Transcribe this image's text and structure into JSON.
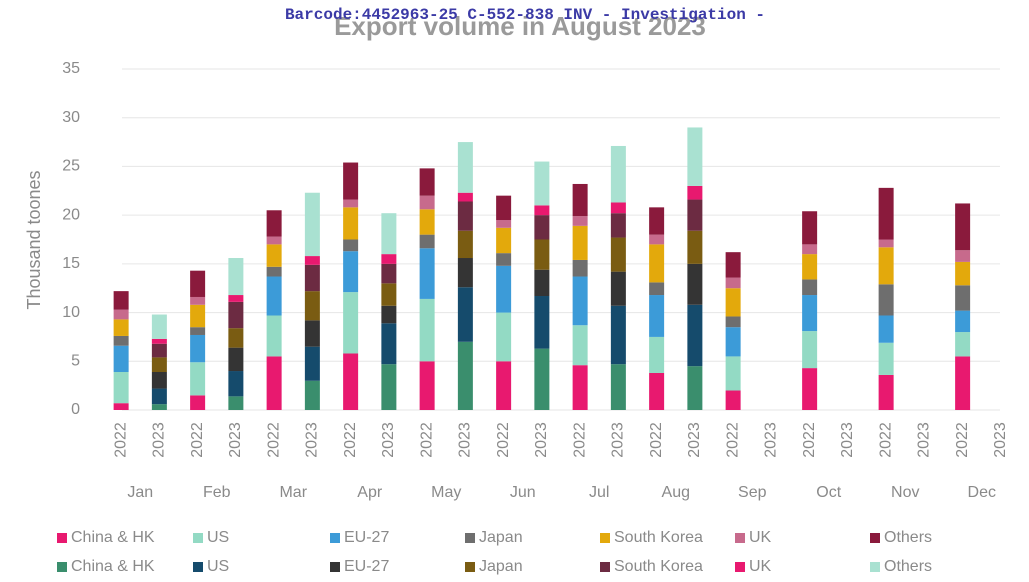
{
  "chart_data": {
    "type": "bar",
    "stacked": true,
    "overlay_text": "Barcode:4452963-25 C-552-838 INV - Investigation  -",
    "title": "Export volume in August 2023",
    "y_label": "Thousand toones",
    "categories": [
      "Jan",
      "Feb",
      "Mar",
      "Apr",
      "May",
      "Jun",
      "Jul",
      "Aug",
      "Sep",
      "Oct",
      "Nov",
      "Dec"
    ],
    "ylim": [
      0,
      35
    ],
    "yticks": [
      0,
      5,
      10,
      15,
      20,
      25,
      30,
      35
    ],
    "grid": true,
    "groups": [
      {
        "year": "2022",
        "series": [
          {
            "name": "China & HK",
            "color": "#e8196f",
            "values": [
              0.7,
              1.5,
              5.5,
              5.8,
              5,
              5,
              4.6,
              3.8,
              2,
              4.3,
              3.6,
              5.5
            ]
          },
          {
            "name": "US",
            "color": "#93dac4",
            "values": [
              3.2,
              3.4,
              4.2,
              6.3,
              6.4,
              5,
              4.1,
              3.7,
              3.5,
              3.8,
              3.3,
              2.5
            ]
          },
          {
            "name": "EU-27",
            "color": "#3c9bd8",
            "values": [
              2.7,
              2.8,
              4,
              4.2,
              5.2,
              4.8,
              5,
              4.3,
              3,
              3.7,
              2.8,
              2.2
            ]
          },
          {
            "name": "Japan",
            "color": "#6e6e6e",
            "values": [
              1,
              0.8,
              1,
              1.2,
              1.4,
              1.3,
              1.7,
              1.3,
              1.1,
              1.6,
              3.2,
              2.6
            ]
          },
          {
            "name": "South Korea",
            "color": "#e3a90c",
            "values": [
              1.7,
              2.3,
              2.3,
              3.3,
              2.6,
              2.6,
              3.5,
              3.9,
              2.9,
              2.6,
              3.8,
              2.4
            ]
          },
          {
            "name": "UK",
            "color": "#c76a8c",
            "values": [
              1,
              0.8,
              0.8,
              0.8,
              1.4,
              0.8,
              1,
              1,
              1.1,
              1,
              0.8,
              1.2
            ]
          },
          {
            "name": "Others",
            "color": "#8a1a3c",
            "values": [
              1.9,
              2.7,
              2.7,
              3.8,
              2.8,
              2.5,
              3.3,
              2.8,
              2.6,
              3.4,
              5.3,
              4.8
            ]
          }
        ]
      },
      {
        "year": "2023",
        "series": [
          {
            "name": "China & HK",
            "color": "#3a8e6d",
            "values": [
              0.6,
              1.4,
              3,
              4.7,
              7,
              6.3,
              4.7,
              4.5,
              null,
              null,
              null,
              null
            ]
          },
          {
            "name": "US",
            "color": "#154b6c",
            "values": [
              1.6,
              2.6,
              3.5,
              4.2,
              5.6,
              5.4,
              6,
              6.3,
              null,
              null,
              null,
              null
            ]
          },
          {
            "name": "EU-27",
            "color": "#343434",
            "values": [
              1.7,
              2.4,
              2.7,
              1.8,
              3,
              2.7,
              3.5,
              4.2,
              null,
              null,
              null,
              null
            ]
          },
          {
            "name": "Japan",
            "color": "#7a5c12",
            "values": [
              1.5,
              2,
              3,
              2.3,
              2.8,
              3.1,
              3.5,
              3.4,
              null,
              null,
              null,
              null
            ]
          },
          {
            "name": "South Korea",
            "color": "#6c2b42",
            "values": [
              1.4,
              2.7,
              2.7,
              2,
              3,
              2.5,
              2.5,
              3.2,
              null,
              null,
              null,
              null
            ]
          },
          {
            "name": "UK",
            "color": "#e8196f",
            "values": [
              0.5,
              0.7,
              0.9,
              1,
              0.9,
              1,
              1.1,
              1.4,
              null,
              null,
              null,
              null
            ]
          },
          {
            "name": "Others",
            "color": "#a9e1d1",
            "values": [
              2.5,
              3.8,
              6.5,
              4.2,
              5.2,
              4.5,
              5.8,
              6,
              null,
              null,
              null,
              null
            ]
          }
        ]
      }
    ]
  }
}
